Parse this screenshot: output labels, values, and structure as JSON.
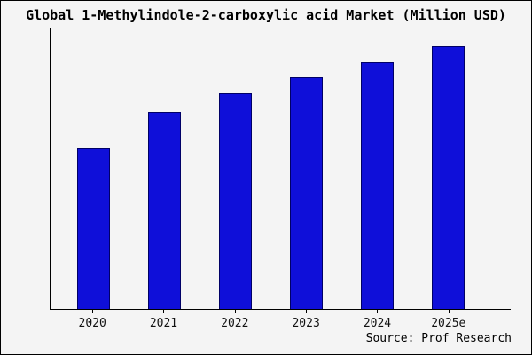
{
  "title": "Global 1-Methylindole-2-carboxylic acid Market (Million USD)",
  "source": "Source: Prof Research",
  "colors": {
    "background": "#f4f4f4",
    "bar_fill": "#0f0fd9",
    "bar_stroke": "#000066",
    "axis": "#000000"
  },
  "chart_data": {
    "type": "bar",
    "title": "Global 1-Methylindole-2-carboxylic acid Market (Million USD)",
    "categories": [
      "2020",
      "2021",
      "2022",
      "2023",
      "2024",
      "2025e"
    ],
    "values": [
      61,
      75,
      82,
      88,
      94,
      100
    ],
    "xlabel": "",
    "ylabel": "",
    "ylim": [
      0,
      107
    ],
    "grid": false,
    "legend": false,
    "annotation": "Source: Prof Research"
  }
}
